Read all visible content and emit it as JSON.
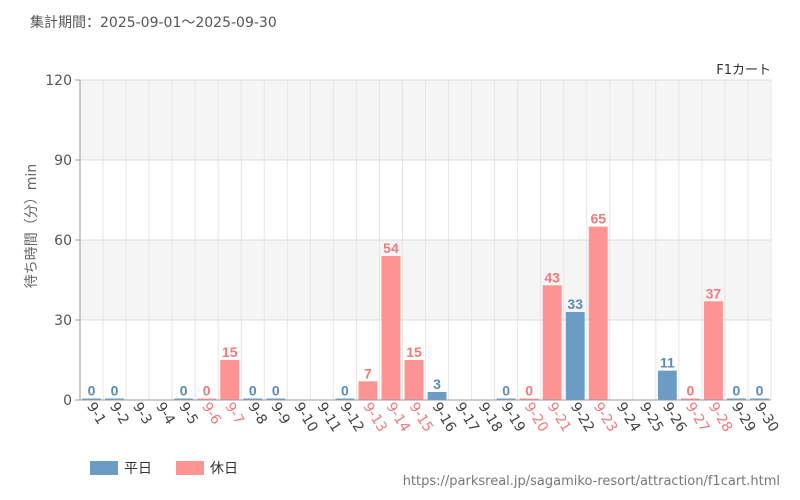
{
  "header": {
    "period_text": "集計期間：2025-09-01～2025-09-30"
  },
  "footer": {
    "source_url": "https://parksreal.jp/sagamiko-resort/attraction/f1cart.html"
  },
  "legend": {
    "weekday": "平日",
    "holiday": "休日"
  },
  "colors": {
    "weekday": "#6b9cc3",
    "holiday": "#fe9394"
  },
  "chart_data": {
    "type": "bar",
    "title": "F1カート",
    "xlabel": "",
    "ylabel": "待ち時間（分）min",
    "ylim": [
      0,
      120
    ],
    "yticks": [
      0,
      30,
      60,
      90,
      120
    ],
    "categories": [
      "9-1",
      "9-2",
      "9-3",
      "9-4",
      "9-5",
      "9-6",
      "9-7",
      "9-8",
      "9-9",
      "9-10",
      "9-11",
      "9-12",
      "9-13",
      "9-14",
      "9-15",
      "9-16",
      "9-17",
      "9-18",
      "9-19",
      "9-20",
      "9-21",
      "9-22",
      "9-23",
      "9-24",
      "9-25",
      "9-26",
      "9-27",
      "9-28",
      "9-29",
      "9-30"
    ],
    "day_type": [
      "weekday",
      "weekday",
      "weekday",
      "weekday",
      "weekday",
      "holiday",
      "holiday",
      "weekday",
      "weekday",
      "weekday",
      "weekday",
      "weekday",
      "holiday",
      "holiday",
      "holiday",
      "weekday",
      "weekday",
      "weekday",
      "weekday",
      "holiday",
      "holiday",
      "weekday",
      "holiday",
      "weekday",
      "weekday",
      "weekday",
      "holiday",
      "holiday",
      "weekday",
      "weekday"
    ],
    "values": [
      0,
      0,
      null,
      null,
      0,
      0,
      15,
      0,
      0,
      null,
      null,
      0,
      7,
      54,
      15,
      3,
      null,
      null,
      0,
      0,
      43,
      33,
      65,
      null,
      null,
      11,
      0,
      37,
      0,
      0
    ]
  }
}
